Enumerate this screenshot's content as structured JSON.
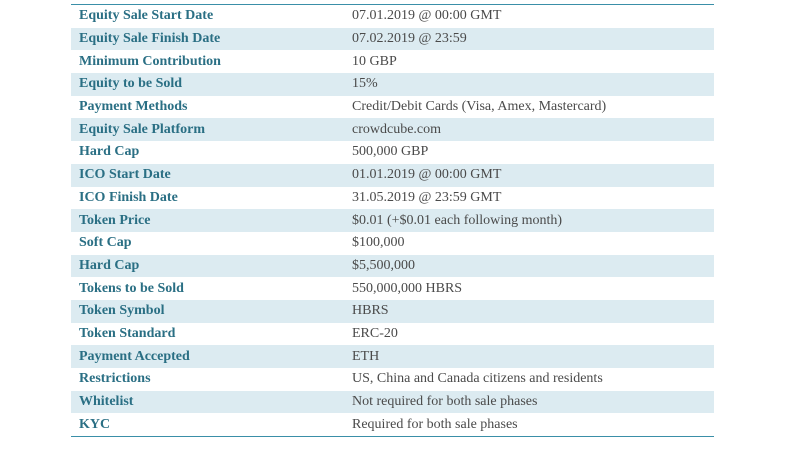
{
  "rows": [
    {
      "label": "Equity Sale Start Date",
      "value": "07.01.2019 @ 00:00 GMT"
    },
    {
      "label": "Equity Sale Finish Date",
      "value": "07.02.2019 @ 23:59"
    },
    {
      "label": "Minimum Contribution",
      "value": "10 GBP"
    },
    {
      "label": "Equity to be Sold",
      "value": "15%"
    },
    {
      "label": "Payment Methods",
      "value": "Credit/Debit Cards (Visa, Amex, Mastercard)"
    },
    {
      "label": "Equity Sale Platform",
      "value": "crowdcube.com"
    },
    {
      "label": "Hard Cap",
      "value": "500,000 GBP"
    },
    {
      "label": "ICO Start Date",
      "value": "01.01.2019 @ 00:00 GMT"
    },
    {
      "label": "ICO Finish Date",
      "value": "31.05.2019 @ 23:59 GMT"
    },
    {
      "label": "Token Price",
      "value": "$0.01 (+$0.01 each following month)"
    },
    {
      "label": "Soft Cap",
      "value": "$100,000"
    },
    {
      "label": "Hard Cap",
      "value": "$5,500,000"
    },
    {
      "label": "Tokens to be Sold",
      "value": "550,000,000 HBRS"
    },
    {
      "label": "Token Symbol",
      "value": "HBRS"
    },
    {
      "label": "Token Standard",
      "value": "ERC-20"
    },
    {
      "label": "Payment Accepted",
      "value": "ETH"
    },
    {
      "label": "Restrictions",
      "value": "US, China and Canada citizens and residents"
    },
    {
      "label": "Whitelist",
      "value": "Not required for both sale phases"
    },
    {
      "label": "KYC",
      "value": "Required for both sale phases"
    }
  ],
  "colors": {
    "label_text": "#2a6f84",
    "value_text": "#4a4a4a",
    "stripe": "#dcebf1",
    "border": "#3a8fa8"
  }
}
